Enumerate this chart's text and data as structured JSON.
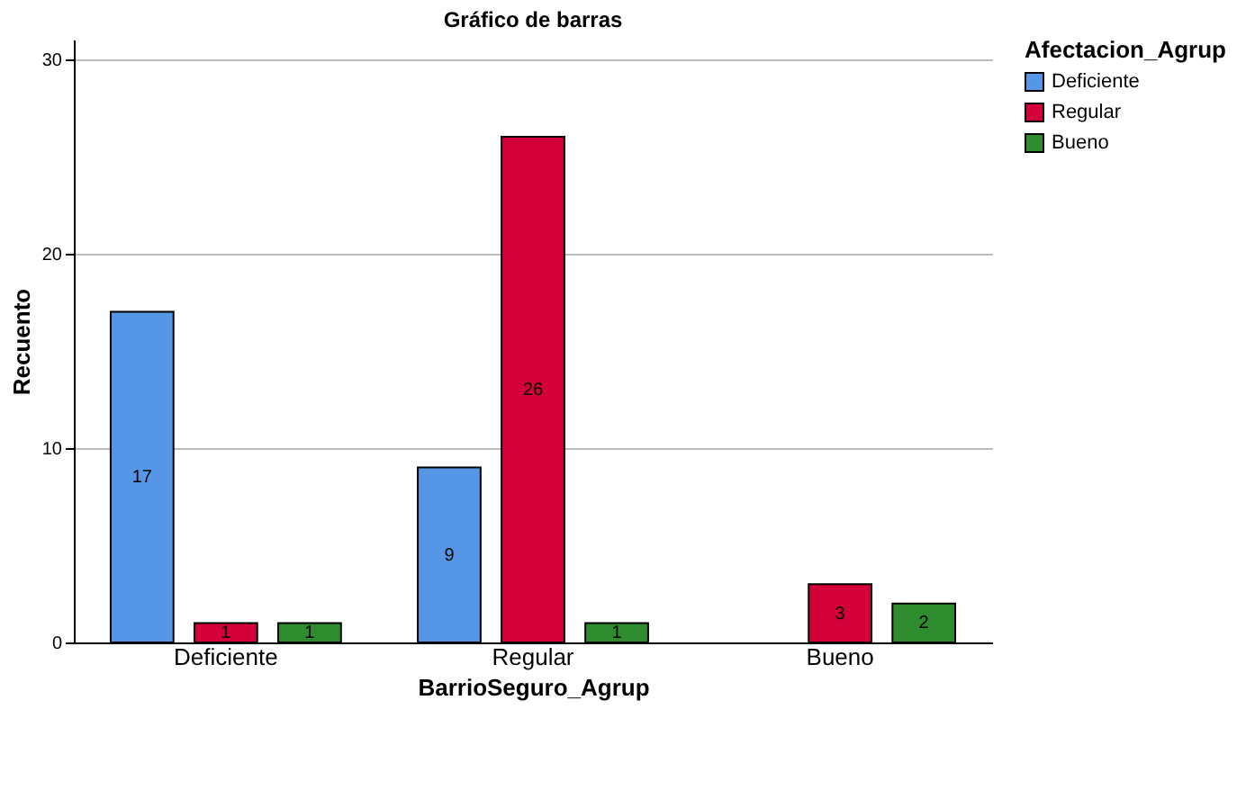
{
  "chart_data": {
    "type": "bar",
    "title": "Gráfico de barras",
    "xlabel": "BarrioSeguro_Agrup",
    "ylabel": "Recuento",
    "legend_title": "Afectacion_Agrup",
    "categories": [
      "Deficiente",
      "Regular",
      "Bueno"
    ],
    "series": [
      {
        "name": "Deficiente",
        "color": "#5596e6",
        "values": [
          17,
          9,
          null
        ]
      },
      {
        "name": "Regular",
        "color": "#d3003a",
        "values": [
          1,
          26,
          3
        ]
      },
      {
        "name": "Bueno",
        "color": "#2e8b2e",
        "values": [
          1,
          1,
          2
        ]
      }
    ],
    "ylim": [
      0,
      31
    ],
    "yticks": [
      0,
      10,
      20,
      30
    ],
    "grid": "y",
    "legend": "top right",
    "data_labels": true
  }
}
